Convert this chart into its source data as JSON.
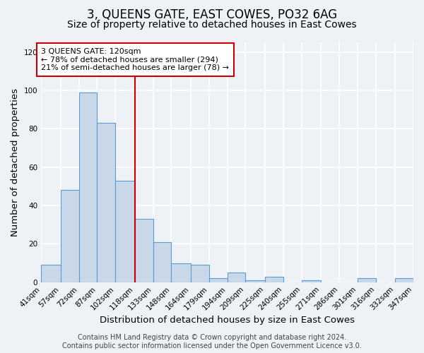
{
  "title": "3, QUEENS GATE, EAST COWES, PO32 6AG",
  "subtitle": "Size of property relative to detached houses in East Cowes",
  "xlabel": "Distribution of detached houses by size in East Cowes",
  "ylabel": "Number of detached properties",
  "bin_labels": [
    "41sqm",
    "57sqm",
    "72sqm",
    "87sqm",
    "102sqm",
    "118sqm",
    "133sqm",
    "148sqm",
    "164sqm",
    "179sqm",
    "194sqm",
    "209sqm",
    "225sqm",
    "240sqm",
    "255sqm",
    "271sqm",
    "286sqm",
    "301sqm",
    "316sqm",
    "332sqm",
    "347sqm"
  ],
  "bar_values": [
    9,
    48,
    99,
    83,
    53,
    33,
    21,
    10,
    9,
    2,
    5,
    1,
    3,
    0,
    1,
    0,
    0,
    2,
    0,
    2
  ],
  "bar_color": "#c8d8e8",
  "bar_edge_color": "#5b9bd5",
  "vline_color": "#cc0000",
  "annotation_text": "3 QUEENS GATE: 120sqm\n← 78% of detached houses are smaller (294)\n21% of semi-detached houses are larger (78) →",
  "annotation_box_color": "#ffffff",
  "annotation_box_edge": "#cc0000",
  "ylim": [
    0,
    125
  ],
  "yticks": [
    0,
    20,
    40,
    60,
    80,
    100,
    120
  ],
  "footer_line1": "Contains HM Land Registry data © Crown copyright and database right 2024.",
  "footer_line2": "Contains public sector information licensed under the Open Government Licence v3.0.",
  "background_color": "#eef2f7",
  "plot_background": "#eef2f7",
  "grid_color": "#ffffff",
  "title_fontsize": 12,
  "subtitle_fontsize": 10,
  "axis_label_fontsize": 9.5,
  "tick_fontsize": 7.5,
  "footer_fontsize": 7,
  "bin_edges": [
    41,
    57,
    72,
    87,
    102,
    118,
    133,
    148,
    164,
    179,
    194,
    209,
    225,
    240,
    255,
    271,
    286,
    301,
    316,
    332,
    347
  ]
}
